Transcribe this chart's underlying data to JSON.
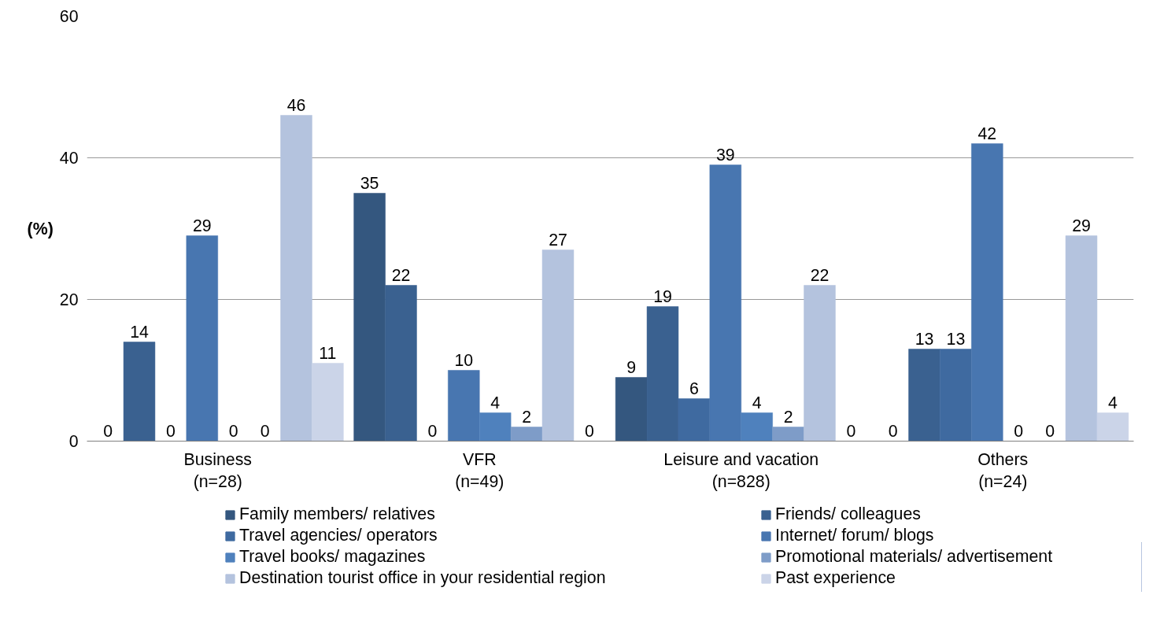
{
  "chart_data": {
    "type": "bar",
    "ylabel": "(%)",
    "categories": [
      "Business\n(n=28)",
      "VFR\n(n=49)",
      "Leisure and vacation\n(n=828)",
      "Others\n(n=24)"
    ],
    "series": [
      {
        "name": "Family members/ relatives",
        "color": "#34577f",
        "values": [
          0,
          35,
          9,
          0
        ]
      },
      {
        "name": "Friends/ colleagues",
        "color": "#3a6190",
        "values": [
          14,
          22,
          19,
          13
        ]
      },
      {
        "name": "Travel agencies/ operators",
        "color": "#3f6aa0",
        "values": [
          0,
          0,
          6,
          13
        ]
      },
      {
        "name": "Internet/ forum/ blogs",
        "color": "#4876b0",
        "values": [
          29,
          10,
          39,
          42
        ]
      },
      {
        "name": "Travel books/ magazines",
        "color": "#4f81bd",
        "values": [
          0,
          4,
          4,
          0
        ]
      },
      {
        "name": "Promotional materials/ advertisement",
        "color": "#7e9cc8",
        "values": [
          0,
          2,
          2,
          0
        ]
      },
      {
        "name": "Destination tourist office in your residential region",
        "color": "#b4c3de",
        "values": [
          46,
          27,
          22,
          29
        ]
      },
      {
        "name": "Past experience",
        "color": "#cbd4e8",
        "values": [
          11,
          0,
          0,
          4
        ]
      }
    ],
    "ylim": [
      0,
      60
    ],
    "yticks": [
      0,
      20,
      40,
      60
    ],
    "grid": "y",
    "legend": "bottom",
    "data_labels": true
  }
}
